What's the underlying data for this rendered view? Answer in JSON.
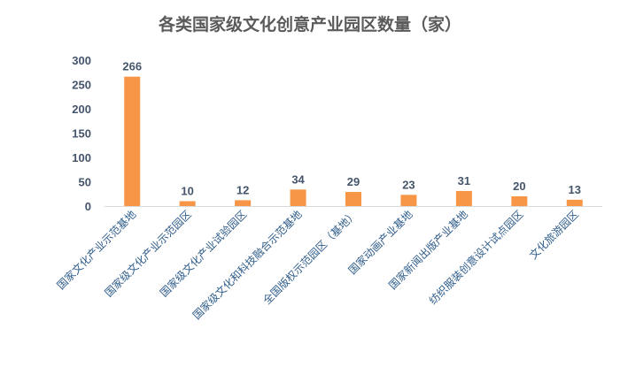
{
  "chart_data": {
    "type": "bar",
    "title": "各类国家级文化创意产业园区数量（家）",
    "categories": [
      "国家文化产业示范基地",
      "国家级文化产业示范园区",
      "国家级文化产业试验园区",
      "国家级文化和科技融合示范基地",
      "全国版权示范园区（基地）",
      "国家动画产业基地",
      "国家新闻出版产业基地",
      "纺织服装创意设计试点园区",
      "文化旅游园区"
    ],
    "values": [
      266,
      10,
      12,
      34,
      29,
      23,
      31,
      20,
      13
    ],
    "ylim": [
      0,
      300
    ],
    "yticks": [
      0,
      50,
      100,
      150,
      200,
      250,
      300
    ],
    "grid": false,
    "bar_color": "#f79646",
    "xlabel": "",
    "ylabel": ""
  }
}
